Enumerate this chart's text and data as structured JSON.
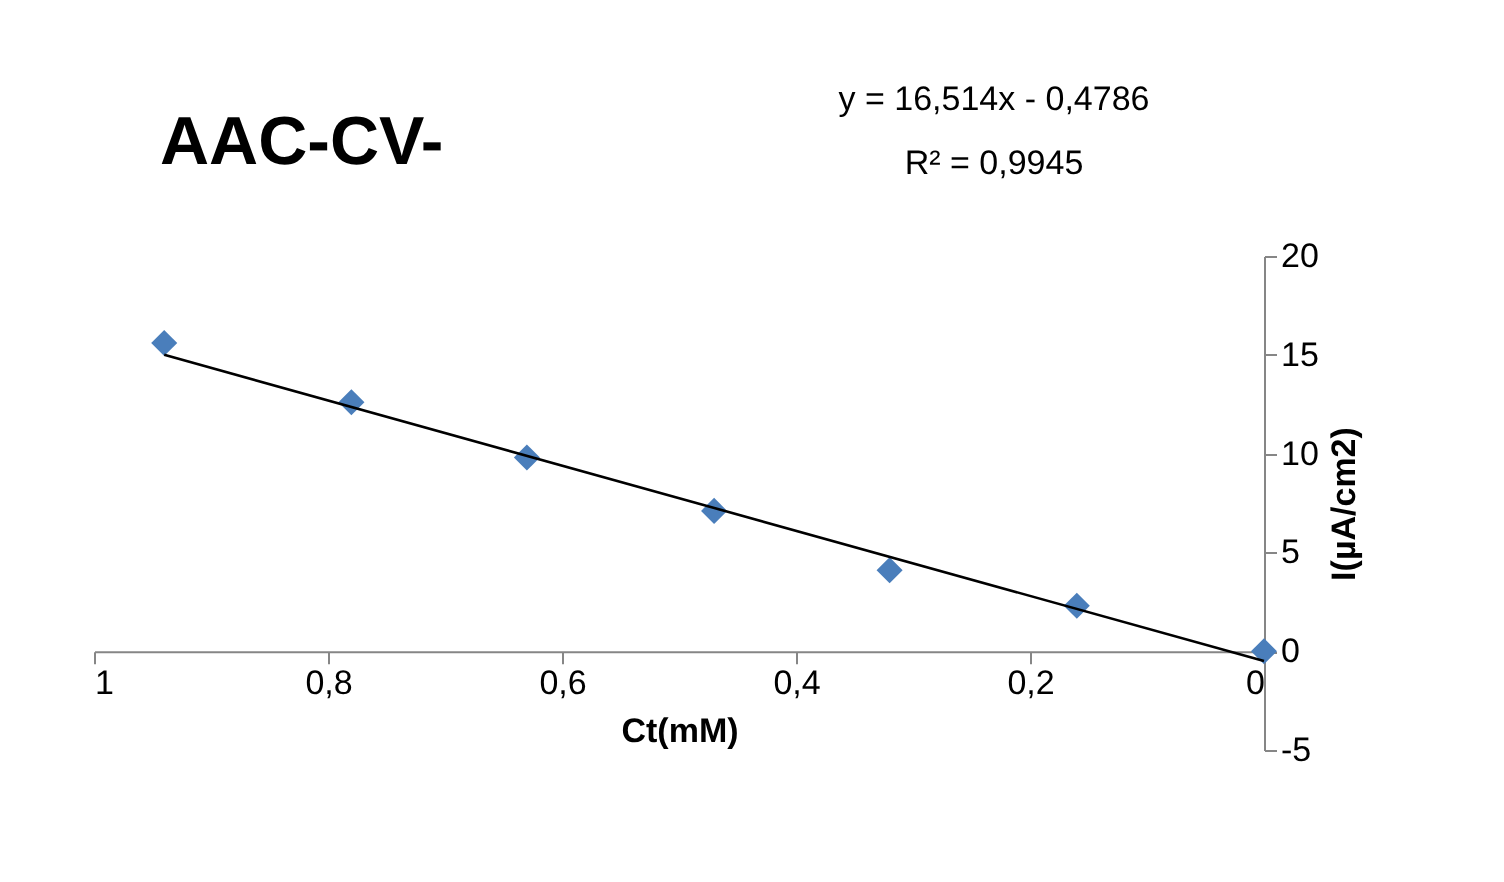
{
  "chart_data": {
    "type": "scatter",
    "title": "AAC-CV-",
    "xlabel": "Ct(mM)",
    "ylabel": "I(µA/cm2)",
    "annotations": [
      "y = 16,514x - 0,4786",
      "R² = 0,9945"
    ],
    "series": [
      {
        "color": "#4a7ebb",
        "marker": "diamond",
        "x": [
          0.94,
          0.78,
          0.63,
          0.47,
          0.32,
          0.16,
          0
        ],
        "values": [
          15.6,
          12.6,
          9.8,
          7.1,
          4.1,
          2.3,
          0
        ]
      },
      {
        "type": "line",
        "color": "#000000",
        "marker": "none",
        "x": [
          0.94,
          0
        ],
        "values": [
          15.0,
          -0.5
        ]
      }
    ],
    "xlim": [
      1,
      0
    ],
    "xticks": [
      1,
      {
        "value": 0.8,
        "label": "0,8"
      },
      {
        "value": 0.6,
        "label": "0,6"
      },
      {
        "value": 0.4,
        "label": "0,4"
      },
      {
        "value": 0.2,
        "label": "0,2"
      },
      0
    ],
    "ylim": [
      -5,
      20
    ],
    "yticks": [
      -5,
      0,
      5,
      10,
      15,
      20
    ],
    "grid": false
  }
}
